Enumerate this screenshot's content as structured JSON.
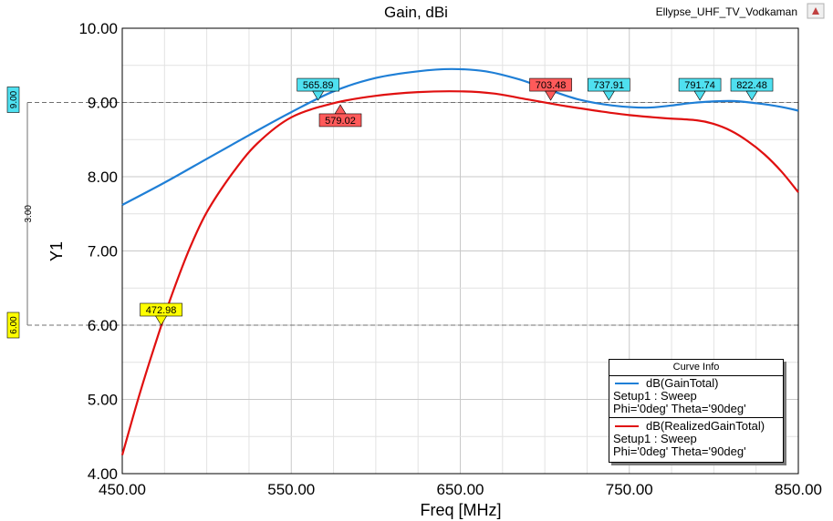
{
  "header": {
    "title": "Gain, dBi",
    "project": "Ellypse_UHF_TV_Vodkaman"
  },
  "colors": {
    "gain_total": "#1f7fd6",
    "realized_gain": "#e01010",
    "marker_cyan": "#4fe0f0",
    "marker_red": "#ff5a5a",
    "marker_yellow": "#ffff00"
  },
  "legend": {
    "title": "Curve Info",
    "entries": [
      {
        "name": "dB(GainTotal)",
        "setup": "Setup1 : Sweep",
        "params": "Phi='0deg' Theta='90deg'"
      },
      {
        "name": "dB(RealizedGainTotal)",
        "setup": "Setup1 : Sweep",
        "params": "Phi='0deg' Theta='90deg'"
      }
    ]
  },
  "chart_data": {
    "type": "line",
    "title": "Gain, dBi",
    "xlabel": "Freq [MHz]",
    "ylabel": "Y1",
    "xlim": [
      450,
      850
    ],
    "ylim": [
      4,
      10
    ],
    "x_ticks": [
      "450.00",
      "550.00",
      "650.00",
      "750.00",
      "850.00"
    ],
    "y_ticks": [
      "4.00",
      "5.00",
      "6.00",
      "7.00",
      "8.00",
      "9.00",
      "10.00"
    ],
    "grid": true,
    "legend_position": "bottom-right",
    "series": [
      {
        "name": "dB(GainTotal)",
        "x": [
          450,
          475,
          500,
          525,
          550,
          575,
          600,
          625,
          645,
          665,
          685,
          700,
          720,
          740,
          760,
          775,
          790,
          810,
          825,
          840,
          850
        ],
        "y": [
          7.62,
          7.92,
          8.24,
          8.56,
          8.87,
          9.15,
          9.33,
          9.42,
          9.45,
          9.42,
          9.31,
          9.19,
          9.04,
          8.96,
          8.93,
          8.96,
          9.0,
          9.02,
          8.99,
          8.94,
          8.89
        ]
      },
      {
        "name": "dB(RealizedGainTotal)",
        "x": [
          450,
          460,
          470,
          480,
          490,
          500,
          515,
          530,
          550,
          575,
          600,
          625,
          650,
          670,
          690,
          710,
          730,
          750,
          770,
          790,
          800,
          810,
          820,
          830,
          840,
          850
        ],
        "y": [
          4.25,
          5.05,
          5.78,
          6.45,
          7.04,
          7.52,
          8.04,
          8.45,
          8.8,
          8.99,
          9.09,
          9.14,
          9.15,
          9.12,
          9.04,
          8.96,
          8.89,
          8.83,
          8.79,
          8.76,
          8.71,
          8.62,
          8.48,
          8.3,
          8.07,
          7.79
        ]
      }
    ],
    "markers": [
      {
        "label": "565.89",
        "x": 565.89,
        "y": 9.03,
        "style": "cyan"
      },
      {
        "label": "579.02",
        "x": 579.02,
        "y": 8.97,
        "style": "red"
      },
      {
        "label": "703.48",
        "x": 703.48,
        "y": 9.03,
        "style": "red"
      },
      {
        "label": "737.91",
        "x": 737.91,
        "y": 9.03,
        "style": "cyan"
      },
      {
        "label": "791.74",
        "x": 791.74,
        "y": 9.03,
        "style": "cyan"
      },
      {
        "label": "822.48",
        "x": 822.48,
        "y": 9.03,
        "style": "cyan"
      },
      {
        "label": "472.98",
        "x": 472.98,
        "y": 6.0,
        "style": "yellow"
      }
    ],
    "reference_lines": [
      {
        "y": 9.0,
        "label": "9.00"
      },
      {
        "y": 6.0,
        "label": "6.00"
      }
    ],
    "delta_label": "3.00"
  }
}
